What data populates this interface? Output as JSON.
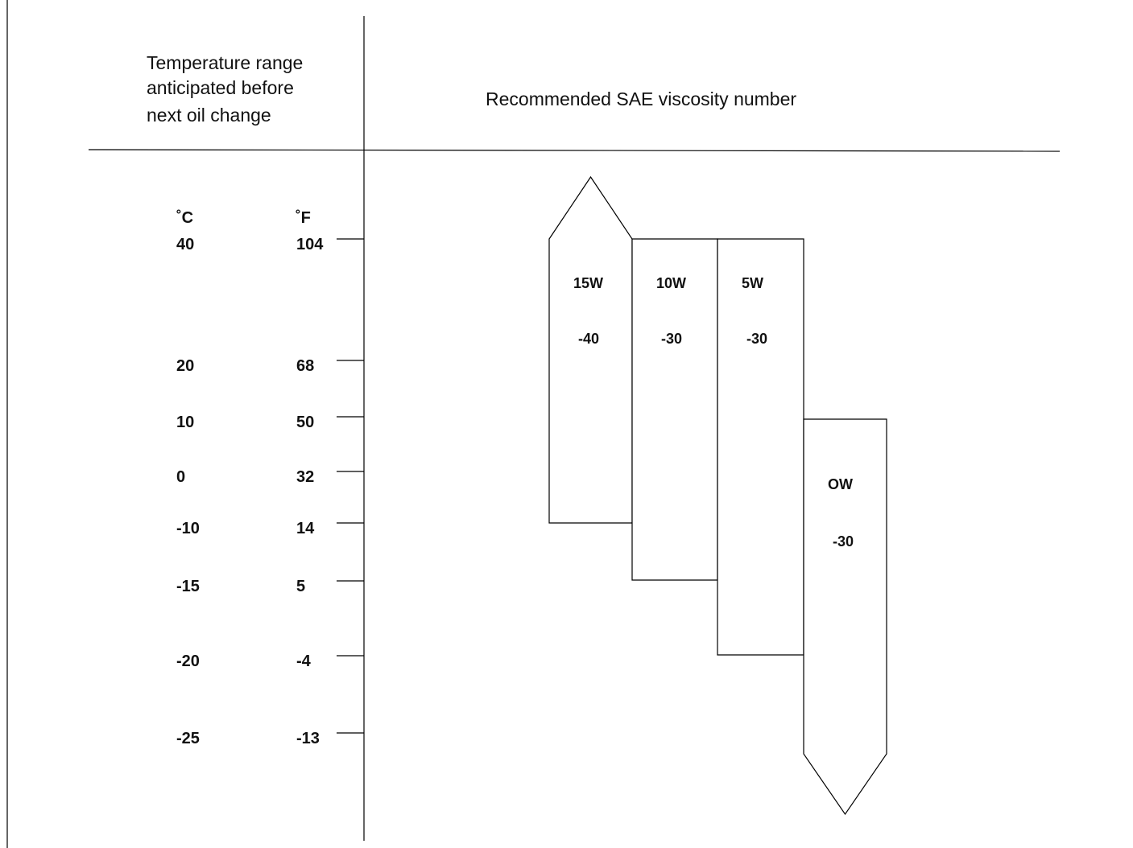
{
  "header": {
    "left_lines": [
      "Temperature range",
      "anticipated before",
      "next oil change"
    ],
    "right": "Recommended SAE viscosity number"
  },
  "scale": {
    "c_label": "˚C",
    "f_label": "˚F",
    "ticks": [
      {
        "c": "40",
        "f": "104"
      },
      {
        "c": "20",
        "f": "68"
      },
      {
        "c": "10",
        "f": "50"
      },
      {
        "c": "0",
        "f": "32"
      },
      {
        "c": "-10",
        "f": "14"
      },
      {
        "c": "-15",
        "f": "5"
      },
      {
        "c": "-20",
        "f": "-4"
      },
      {
        "c": "-25",
        "f": "-13"
      }
    ]
  },
  "oils": [
    {
      "grade": "15W",
      "number": "-40",
      "min_c": -10,
      "max_c": 40,
      "arrow_up": true,
      "arrow_down": false
    },
    {
      "grade": "10W",
      "number": "-30",
      "min_c": -15,
      "max_c": 40,
      "arrow_up": false,
      "arrow_down": false
    },
    {
      "grade": "5W",
      "number": "-30",
      "min_c": -20,
      "max_c": 40,
      "arrow_up": false,
      "arrow_down": false
    },
    {
      "grade": "OW",
      "number": "-30",
      "min_c": -25,
      "max_c": 20,
      "arrow_up": false,
      "arrow_down": true
    }
  ]
}
